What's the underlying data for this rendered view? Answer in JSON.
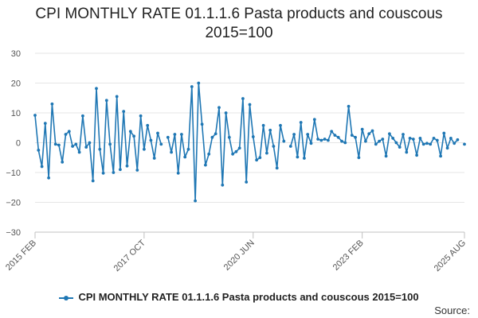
{
  "chart_data": {
    "type": "line",
    "title": "CPI MONTHLY RATE 01.1.1.6 Pasta products and couscous 2015=100",
    "xlabel": "",
    "ylabel": "",
    "ylim": [
      -30,
      30
    ],
    "yticks": [
      "30",
      "20",
      "10",
      "0",
      "−10",
      "−20",
      "−30"
    ],
    "xtick_labels": [
      "2015 FEB",
      "2017 OCT",
      "2020 JUN",
      "2023 FEB",
      "2025 AUG"
    ],
    "xtick_indices": [
      0,
      32,
      64,
      96,
      126
    ],
    "grid": true,
    "legend_position": "bottom",
    "series": [
      {
        "name": "CPI MONTHLY RATE 01.1.1.6 Pasta products and couscous 2015=100",
        "color": "#1f77b4",
        "start": "2015 FEB",
        "values": [
          9.2,
          -2.5,
          -8,
          6.5,
          -11.8,
          13,
          -0.5,
          -0.8,
          -6.5,
          2.8,
          3.8,
          -1.2,
          -0.5,
          -3.2,
          9,
          -1.5,
          0,
          -12.8,
          18.2,
          -2.2,
          -10.2,
          14.2,
          -0.5,
          -10,
          15.5,
          -9,
          10.5,
          -7.8,
          3.8,
          2.2,
          -9.2,
          9,
          -2.2,
          5.8,
          0.8,
          -5.2,
          3.2,
          -0.5,
          null,
          1.8,
          -3.2,
          2.8,
          -10.2,
          2.8,
          -4.8,
          -2.2,
          18.8,
          -19.5,
          20,
          6.2,
          -7.5,
          -3.8,
          1.8,
          3,
          11.8,
          -14.2,
          10,
          1.8,
          -3.8,
          -3,
          -1.8,
          14.8,
          -13.2,
          12.8,
          2,
          -5.8,
          -5,
          5.8,
          -3.5,
          4.2,
          -1.2,
          -8.5,
          5.8,
          0.5,
          null,
          -1.2,
          2.8,
          -4.8,
          6.8,
          -5.2,
          2.8,
          -0.2,
          7.8,
          1.2,
          0.8,
          1.2,
          0.8,
          3.8,
          2.5,
          1.8,
          0.5,
          0,
          12.2,
          2.5,
          1.8,
          -5,
          4.5,
          0.5,
          3,
          4,
          -0.5,
          0.5,
          1.2,
          -4.5,
          3,
          1.5,
          0,
          -1.5,
          2.8,
          -3.2,
          1.5,
          1.2,
          -4.2,
          1.5,
          -0.5,
          -0.2,
          -0.5,
          1.5,
          0.8,
          -4.5,
          3.2,
          -1.8,
          1.5,
          -0.2,
          1,
          null,
          -0.5
        ]
      }
    ]
  },
  "footer": {
    "source_label": "Source:"
  }
}
